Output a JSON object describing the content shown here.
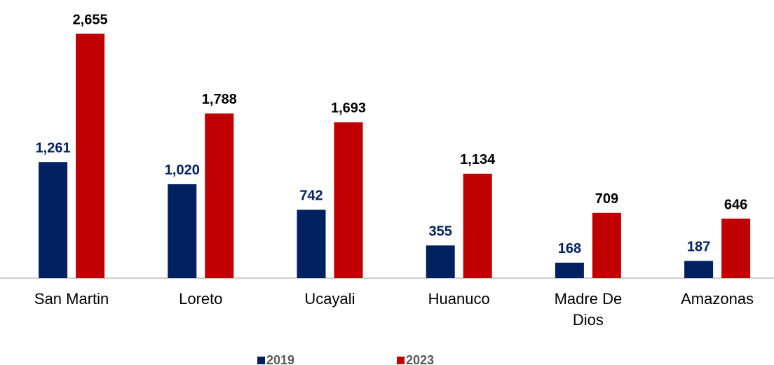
{
  "chart_data": {
    "type": "bar",
    "categories": [
      "San Martin",
      "Loreto",
      "Ucayali",
      "Huanuco",
      "Madre De Dios",
      "Amazonas"
    ],
    "series": [
      {
        "name": "2019",
        "color": "#002060",
        "values": [
          1261,
          1020,
          742,
          355,
          168,
          187
        ],
        "value_labels": [
          "1,261",
          "1,020",
          "742",
          "355",
          "168",
          "187"
        ]
      },
      {
        "name": "2023",
        "color": "#c00000",
        "values": [
          2655,
          1788,
          1693,
          1134,
          709,
          646
        ],
        "value_labels": [
          "2,655",
          "1,788",
          "1,693",
          "1,134",
          "709",
          "646"
        ]
      }
    ],
    "legend": "bottom"
  }
}
